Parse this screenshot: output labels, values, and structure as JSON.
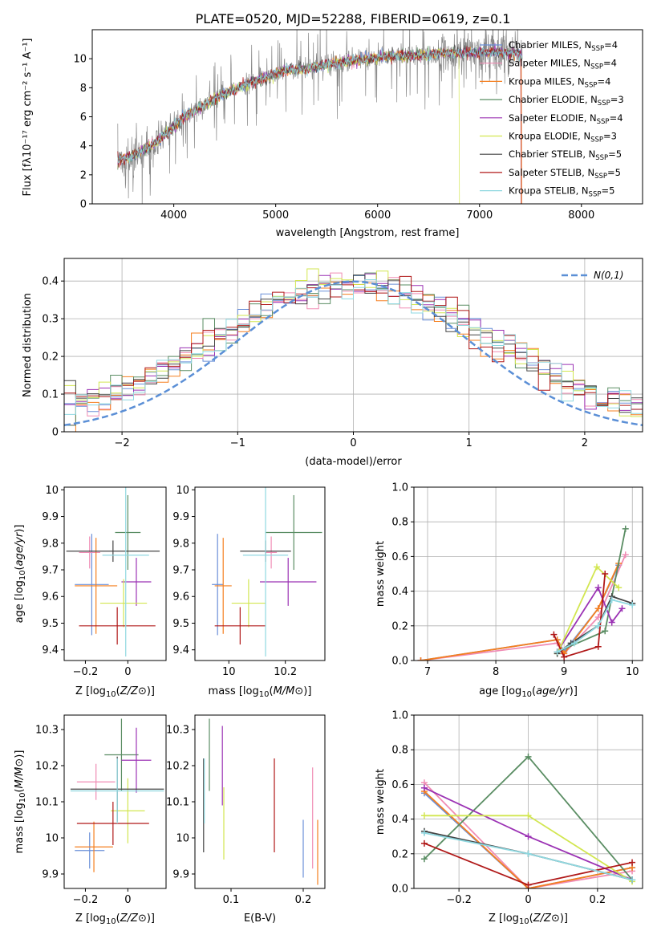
{
  "figure_title": "PLATE=0520, MJD=52288, FIBERID=0619, z=0.1",
  "colors": {
    "Chabrier MILES": "#6a8fd8",
    "Salpeter MILES": "#f08cb4",
    "Kroupa MILES": "#f57f1f",
    "Chabrier ELODIE": "#5a8d63",
    "Salpeter ELODIE": "#9b32b4",
    "Kroupa ELODIE": "#d2e650",
    "Chabrier STELIB": "#444444",
    "Salpeter STELIB": "#b01818",
    "Kroupa STELIB": "#8fd8e0",
    "observed": "#888888"
  },
  "legend_labels": [
    [
      "Chabrier MILES, N",
      "SSP",
      "=4"
    ],
    [
      "Salpeter MILES, N",
      "SSP",
      "=4"
    ],
    [
      "Kroupa MILES, N",
      "SSP",
      "=4"
    ],
    [
      "Chabrier ELODIE, N",
      "SSP",
      "=3"
    ],
    [
      "Salpeter ELODIE, N",
      "SSP",
      "=4"
    ],
    [
      "Kroupa ELODIE, N",
      "SSP",
      "=3"
    ],
    [
      "Chabrier STELIB, N",
      "SSP",
      "=5"
    ],
    [
      "Salpeter STELIB, N",
      "SSP",
      "=5"
    ],
    [
      "Kroupa STELIB, N",
      "SSP",
      "=5"
    ]
  ],
  "chart_data": [
    {
      "type": "line",
      "id": "spectrum",
      "xlabel": "wavelength [Angstrom, rest frame]",
      "ylabel": "Flux [fλ10⁻¹⁷ erg cm⁻² s⁻¹ A⁻¹]",
      "xlim": [
        3200,
        8600
      ],
      "ylim": [
        0,
        12
      ],
      "xticks": [
        4000,
        5000,
        6000,
        7000,
        8000
      ],
      "yticks": [
        0,
        2,
        4,
        6,
        8,
        10
      ],
      "continuum": {
        "x": [
          3450,
          3600,
          3800,
          3950,
          4100,
          4300,
          4500,
          4700,
          4900,
          5100,
          5300,
          5500,
          5700,
          5900,
          6100,
          6300,
          6500,
          6700,
          6900,
          7100,
          7300,
          7420
        ],
        "y": [
          3.0,
          3.3,
          4.1,
          5.0,
          6.0,
          6.8,
          7.6,
          8.2,
          8.7,
          9.2,
          9.3,
          9.6,
          9.8,
          10.0,
          10.2,
          10.2,
          10.3,
          10.4,
          10.4,
          10.5,
          10.4,
          10.3
        ]
      },
      "observed_range": [
        3450,
        7420
      ],
      "model_range": [
        3450,
        7420
      ],
      "model_drops": [
        {
          "series": "Kroupa ELODIE",
          "x": 6800
        },
        {
          "series": "Salpeter STELIB",
          "x": 7410
        },
        {
          "series": "Kroupa MILES",
          "x": 7415
        }
      ]
    },
    {
      "type": "line",
      "id": "residuals",
      "xlabel": "(data-model)/error",
      "ylabel": "Normed distribution",
      "xlim": [
        -2.5,
        2.5
      ],
      "ylim": [
        0,
        0.46
      ],
      "xticks": [
        -2,
        -1,
        0,
        1,
        2
      ],
      "yticks": [
        0.0,
        0.1,
        0.2,
        0.3,
        0.4
      ],
      "gaussian_label": "N(0,1)",
      "bins": 50
    },
    {
      "type": "scatter",
      "id": "age_vs_Z",
      "xlabel": "Z [log10(Z/Z⊙)]",
      "ylabel": "age  [log10(age/yr)]",
      "xlim": [
        -0.3,
        0.18
      ],
      "ylim": [
        9.36,
        10.01
      ],
      "xticks": [
        -0.2,
        0.0
      ],
      "yticks": [
        9.4,
        9.5,
        9.6,
        9.7,
        9.8,
        9.9,
        10.0
      ],
      "points": [
        {
          "series": "Chabrier MILES",
          "x": -0.17,
          "y": 9.645,
          "xerr": 0.08,
          "yerr": 0.19
        },
        {
          "series": "Salpeter MILES",
          "x": -0.18,
          "y": 9.765,
          "xerr": 0.05,
          "yerr": 0.06
        },
        {
          "series": "Kroupa MILES",
          "x": -0.15,
          "y": 9.64,
          "xerr": 0.1,
          "yerr": 0.18
        },
        {
          "series": "Chabrier ELODIE",
          "x": 0.0,
          "y": 9.84,
          "xerr": 0.06,
          "yerr": 0.14
        },
        {
          "series": "Salpeter ELODIE",
          "x": 0.04,
          "y": 9.655,
          "xerr": 0.07,
          "yerr": 0.09
        },
        {
          "series": "Kroupa ELODIE",
          "x": -0.02,
          "y": 9.575,
          "xerr": 0.11,
          "yerr": 0.09
        },
        {
          "series": "Chabrier STELIB",
          "x": -0.07,
          "y": 9.77,
          "xerr": 0.22,
          "yerr": 0.04
        },
        {
          "series": "Salpeter STELIB",
          "x": -0.05,
          "y": 9.49,
          "xerr": 0.18,
          "yerr": 0.07
        },
        {
          "series": "Kroupa STELIB",
          "x": -0.01,
          "y": 9.755,
          "xerr": 0.11,
          "yerr": 0.38
        }
      ]
    },
    {
      "type": "scatter",
      "id": "age_vs_mass",
      "xlabel": "mass [log10(M/M⊙)]",
      "ylabel": "",
      "xlim": [
        9.88,
        10.34
      ],
      "ylim": [
        9.36,
        10.01
      ],
      "xticks": [
        10.0,
        10.2
      ],
      "yticks": [
        9.4,
        9.5,
        9.6,
        9.7,
        9.8,
        9.9,
        10.0
      ],
      "points": [
        {
          "series": "Chabrier MILES",
          "x": 9.96,
          "y": 9.645,
          "xerr": 0.02,
          "yerr": 0.19
        },
        {
          "series": "Salpeter MILES",
          "x": 10.15,
          "y": 9.765,
          "xerr": 0.02,
          "yerr": 0.06
        },
        {
          "series": "Kroupa MILES",
          "x": 9.98,
          "y": 9.64,
          "xerr": 0.03,
          "yerr": 0.18
        },
        {
          "series": "Chabrier ELODIE",
          "x": 10.23,
          "y": 9.84,
          "xerr": 0.1,
          "yerr": 0.14
        },
        {
          "series": "Salpeter ELODIE",
          "x": 10.21,
          "y": 9.655,
          "xerr": 0.1,
          "yerr": 0.09
        },
        {
          "series": "Kroupa ELODIE",
          "x": 10.07,
          "y": 9.575,
          "xerr": 0.06,
          "yerr": 0.09
        },
        {
          "series": "Chabrier STELIB",
          "x": 10.13,
          "y": 9.77,
          "xerr": 0.09,
          "yerr": 0.04
        },
        {
          "series": "Salpeter STELIB",
          "x": 10.04,
          "y": 9.49,
          "xerr": 0.09,
          "yerr": 0.07
        },
        {
          "series": "Kroupa STELIB",
          "x": 10.13,
          "y": 9.755,
          "xerr": 0.08,
          "yerr": 0.38
        }
      ]
    },
    {
      "type": "line",
      "id": "weight_vs_age",
      "xlabel": "age  [log10(age/yr)]",
      "ylabel": "mass weight",
      "xlim": [
        6.8,
        10.15
      ],
      "ylim": [
        0,
        1.0
      ],
      "xticks": [
        7,
        8,
        9,
        10
      ],
      "yticks": [
        0.0,
        0.2,
        0.4,
        0.6,
        0.8,
        1.0
      ],
      "series": [
        {
          "name": "Chabrier MILES",
          "x": [
            6.9,
            8.9,
            9.0,
            9.5,
            9.8
          ],
          "y": [
            0.0,
            0.12,
            0.05,
            0.3,
            0.55
          ]
        },
        {
          "name": "Salpeter MILES",
          "x": [
            6.9,
            8.9,
            9.0,
            9.5,
            9.9
          ],
          "y": [
            0.0,
            0.1,
            0.04,
            0.25,
            0.61
          ]
        },
        {
          "name": "Kroupa MILES",
          "x": [
            6.9,
            8.9,
            9.0,
            9.5,
            9.8
          ],
          "y": [
            0.0,
            0.12,
            0.04,
            0.3,
            0.56
          ]
        },
        {
          "name": "Chabrier ELODIE",
          "x": [
            8.9,
            9.6,
            9.9
          ],
          "y": [
            0.05,
            0.17,
            0.76
          ]
        },
        {
          "name": "Salpeter ELODIE",
          "x": [
            8.9,
            9.5,
            9.7,
            9.85
          ],
          "y": [
            0.05,
            0.42,
            0.22,
            0.3
          ]
        },
        {
          "name": "Kroupa ELODIE",
          "x": [
            8.9,
            9.48,
            9.8
          ],
          "y": [
            0.04,
            0.54,
            0.42
          ]
        },
        {
          "name": "Chabrier STELIB",
          "x": [
            8.9,
            9.1,
            9.5,
            9.7,
            10.0
          ],
          "y": [
            0.04,
            0.1,
            0.2,
            0.37,
            0.33
          ]
        },
        {
          "name": "Salpeter STELIB",
          "x": [
            8.85,
            9.0,
            9.5,
            9.6
          ],
          "y": [
            0.15,
            0.02,
            0.08,
            0.5
          ]
        },
        {
          "name": "Kroupa STELIB",
          "x": [
            8.9,
            9.15,
            9.5,
            9.7,
            10.0
          ],
          "y": [
            0.05,
            0.1,
            0.2,
            0.35,
            0.32
          ]
        }
      ]
    },
    {
      "type": "scatter",
      "id": "mass_vs_Z",
      "xlabel": "Z [log10(Z/Z⊙)]",
      "ylabel": "mass [log10(M/M⊙)]",
      "xlim": [
        -0.3,
        0.18
      ],
      "ylim": [
        9.86,
        10.34
      ],
      "xticks": [
        -0.2,
        0.0
      ],
      "yticks": [
        9.9,
        10.0,
        10.1,
        10.2,
        10.3
      ],
      "points": [
        {
          "series": "Chabrier MILES",
          "x": -0.18,
          "y": 9.965,
          "xerr": 0.07,
          "yerr": 0.05
        },
        {
          "series": "Salpeter MILES",
          "x": -0.15,
          "y": 10.155,
          "xerr": 0.09,
          "yerr": 0.05
        },
        {
          "series": "Kroupa MILES",
          "x": -0.16,
          "y": 9.975,
          "xerr": 0.09,
          "yerr": 0.07
        },
        {
          "series": "Chabrier ELODIE",
          "x": -0.03,
          "y": 10.23,
          "xerr": 0.08,
          "yerr": 0.1
        },
        {
          "series": "Salpeter ELODIE",
          "x": 0.04,
          "y": 10.215,
          "xerr": 0.07,
          "yerr": 0.09
        },
        {
          "series": "Kroupa ELODIE",
          "x": 0.0,
          "y": 10.075,
          "xerr": 0.08,
          "yerr": 0.09
        },
        {
          "series": "Chabrier STELIB",
          "x": -0.05,
          "y": 10.135,
          "xerr": 0.22,
          "yerr": 0.09
        },
        {
          "series": "Salpeter STELIB",
          "x": -0.07,
          "y": 10.04,
          "xerr": 0.17,
          "yerr": 0.06
        },
        {
          "series": "Kroupa STELIB",
          "x": -0.05,
          "y": 10.13,
          "xerr": 0.22,
          "yerr": 0.09
        }
      ]
    },
    {
      "type": "scatter",
      "id": "mass_vs_ebv",
      "xlabel": "E(B-V)",
      "ylabel": "",
      "xlim": [
        0.05,
        0.23
      ],
      "ylim": [
        9.86,
        10.34
      ],
      "xticks": [
        0.1,
        0.2
      ],
      "yticks": [
        9.9,
        10.0,
        10.1,
        10.2,
        10.3
      ],
      "points": [
        {
          "series": "Chabrier MILES",
          "x": 0.2,
          "y": 9.97,
          "xerr": 0.0,
          "yerr": 0.08
        },
        {
          "series": "Salpeter MILES",
          "x": 0.213,
          "y": 10.055,
          "xerr": 0.0,
          "yerr": 0.14
        },
        {
          "series": "Kroupa MILES",
          "x": 0.22,
          "y": 9.96,
          "xerr": 0.0,
          "yerr": 0.09
        },
        {
          "series": "Chabrier ELODIE",
          "x": 0.07,
          "y": 10.23,
          "xerr": 0.0,
          "yerr": 0.1
        },
        {
          "series": "Salpeter ELODIE",
          "x": 0.088,
          "y": 10.2,
          "xerr": 0.0,
          "yerr": 0.11
        },
        {
          "series": "Kroupa ELODIE",
          "x": 0.09,
          "y": 10.04,
          "xerr": 0.0,
          "yerr": 0.1
        },
        {
          "series": "Chabrier STELIB",
          "x": 0.062,
          "y": 10.09,
          "xerr": 0.0,
          "yerr": 0.13
        },
        {
          "series": "Salpeter STELIB",
          "x": 0.16,
          "y": 10.09,
          "xerr": 0.0,
          "yerr": 0.13
        },
        {
          "series": "Kroupa STELIB",
          "x": 0.063,
          "y": 10.13,
          "xerr": 0.0,
          "yerr": 0.09
        }
      ]
    },
    {
      "type": "line",
      "id": "weight_vs_Z",
      "xlabel": "Z [log10(Z/Z⊙)]",
      "ylabel": "mass weight",
      "xlim": [
        -0.33,
        0.33
      ],
      "ylim": [
        0,
        1.0
      ],
      "xticks": [
        -0.2,
        0.0,
        0.2
      ],
      "yticks": [
        0.0,
        0.2,
        0.4,
        0.6,
        0.8,
        1.0
      ],
      "series": [
        {
          "name": "Chabrier MILES",
          "x": [
            -0.3,
            0.0,
            0.3
          ],
          "y": [
            0.55,
            0.0,
            0.12
          ]
        },
        {
          "name": "Salpeter MILES",
          "x": [
            -0.3,
            0.0,
            0.3
          ],
          "y": [
            0.61,
            0.0,
            0.1
          ]
        },
        {
          "name": "Kroupa MILES",
          "x": [
            -0.3,
            0.0,
            0.3
          ],
          "y": [
            0.56,
            0.0,
            0.12
          ]
        },
        {
          "name": "Chabrier ELODIE",
          "x": [
            -0.3,
            0.0,
            0.3
          ],
          "y": [
            0.17,
            0.76,
            0.05
          ]
        },
        {
          "name": "Salpeter ELODIE",
          "x": [
            -0.3,
            0.0,
            0.3
          ],
          "y": [
            0.58,
            0.3,
            0.05
          ]
        },
        {
          "name": "Kroupa ELODIE",
          "x": [
            -0.3,
            0.0,
            0.3
          ],
          "y": [
            0.42,
            0.42,
            0.04
          ]
        },
        {
          "name": "Chabrier STELIB",
          "x": [
            -0.3,
            0.0,
            0.3
          ],
          "y": [
            0.33,
            0.2,
            0.05
          ]
        },
        {
          "name": "Salpeter STELIB",
          "x": [
            -0.3,
            0.0,
            0.3
          ],
          "y": [
            0.26,
            0.02,
            0.15
          ]
        },
        {
          "name": "Kroupa STELIB",
          "x": [
            -0.3,
            0.0,
            0.3
          ],
          "y": [
            0.32,
            0.2,
            0.05
          ]
        }
      ]
    }
  ]
}
